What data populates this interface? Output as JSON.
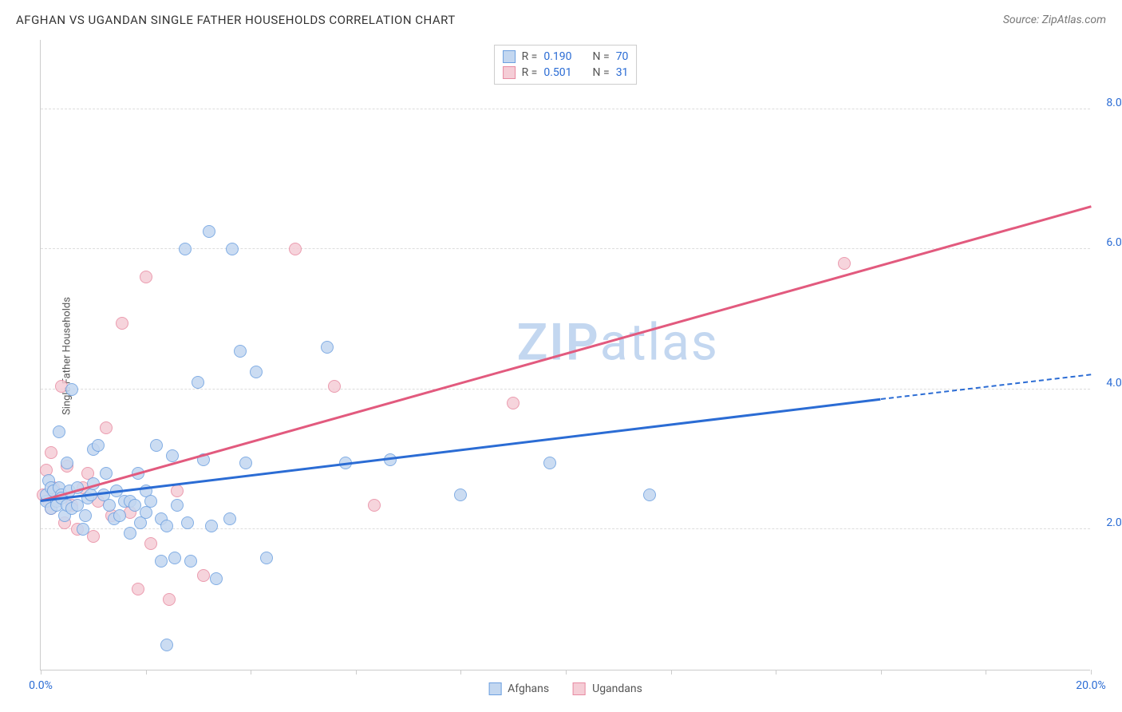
{
  "header": {
    "title": "AFGHAN VS UGANDAN SINGLE FATHER HOUSEHOLDS CORRELATION CHART",
    "source_prefix": "Source: ",
    "source_name": "ZipAtlas.com"
  },
  "ylabel": "Single Father Households",
  "watermark": {
    "bold": "ZIP",
    "light": "atlas",
    "color": "#c3d7f0"
  },
  "chart": {
    "type": "scatter",
    "background_color": "#ffffff",
    "grid_color": "#dddddd",
    "axis_color": "#cccccc",
    "xlim": [
      0,
      20
    ],
    "ylim": [
      0,
      9
    ],
    "x_ticks": [
      0,
      2,
      4,
      6,
      8,
      10,
      12,
      14,
      16,
      18,
      20
    ],
    "x_tick_labels": {
      "0": "0.0%",
      "20": "20.0%"
    },
    "x_tick_label_colors": {
      "0": "#2b6cd4",
      "20": "#2b6cd4"
    },
    "y_gridlines": [
      2,
      4,
      6,
      8
    ],
    "y_tick_labels": {
      "2": "2.0%",
      "4": "4.0%",
      "6": "6.0%",
      "8": "8.0%"
    },
    "y_tick_color": "#2b6cd4",
    "marker_radius": 8,
    "marker_border_width": 1.5,
    "trend_line_width": 2.5
  },
  "series": {
    "afghans": {
      "label": "Afghans",
      "fill": "#c3d7f0",
      "stroke": "#6da0e0",
      "line_color": "#2b6cd4",
      "R_label": "R = ",
      "R_value": "0.190",
      "N_label": "N = ",
      "N_value": "70",
      "trend": {
        "x1": 0,
        "y1": 2.4,
        "x2": 16,
        "y2": 3.85,
        "dash_to_x": 20,
        "dash_to_y": 4.2
      },
      "points": [
        [
          0.1,
          2.4
        ],
        [
          0.1,
          2.5
        ],
        [
          0.15,
          2.7
        ],
        [
          0.2,
          2.3
        ],
        [
          0.2,
          2.6
        ],
        [
          0.25,
          2.55
        ],
        [
          0.3,
          2.4
        ],
        [
          0.3,
          2.35
        ],
        [
          0.35,
          2.6
        ],
        [
          0.35,
          3.4
        ],
        [
          0.4,
          2.5
        ],
        [
          0.4,
          2.45
        ],
        [
          0.45,
          2.2
        ],
        [
          0.5,
          2.95
        ],
        [
          0.5,
          2.35
        ],
        [
          0.55,
          2.55
        ],
        [
          0.6,
          4.0
        ],
        [
          0.6,
          2.3
        ],
        [
          0.7,
          2.6
        ],
        [
          0.7,
          2.35
        ],
        [
          0.8,
          2.0
        ],
        [
          0.85,
          2.2
        ],
        [
          0.9,
          2.45
        ],
        [
          0.95,
          2.5
        ],
        [
          1.0,
          3.15
        ],
        [
          1.0,
          2.65
        ],
        [
          1.1,
          3.2
        ],
        [
          1.2,
          2.5
        ],
        [
          1.25,
          2.8
        ],
        [
          1.3,
          2.35
        ],
        [
          1.4,
          2.15
        ],
        [
          1.45,
          2.55
        ],
        [
          1.5,
          2.2
        ],
        [
          1.6,
          2.4
        ],
        [
          1.7,
          1.95
        ],
        [
          1.7,
          2.4
        ],
        [
          1.8,
          2.35
        ],
        [
          1.85,
          2.8
        ],
        [
          1.9,
          2.1
        ],
        [
          2.0,
          2.55
        ],
        [
          2.0,
          2.25
        ],
        [
          2.1,
          2.4
        ],
        [
          2.2,
          3.2
        ],
        [
          2.3,
          1.55
        ],
        [
          2.3,
          2.15
        ],
        [
          2.4,
          2.05
        ],
        [
          2.5,
          3.05
        ],
        [
          2.55,
          1.6
        ],
        [
          2.6,
          2.35
        ],
        [
          2.75,
          6.0
        ],
        [
          2.8,
          2.1
        ],
        [
          2.85,
          1.55
        ],
        [
          3.0,
          4.1
        ],
        [
          3.1,
          3.0
        ],
        [
          3.2,
          6.25
        ],
        [
          3.25,
          2.05
        ],
        [
          3.35,
          1.3
        ],
        [
          3.6,
          2.15
        ],
        [
          3.65,
          6.0
        ],
        [
          3.8,
          4.55
        ],
        [
          3.9,
          2.95
        ],
        [
          4.1,
          4.25
        ],
        [
          4.3,
          1.6
        ],
        [
          5.45,
          4.6
        ],
        [
          5.8,
          2.95
        ],
        [
          6.65,
          3.0
        ],
        [
          8.0,
          2.5
        ],
        [
          9.7,
          2.95
        ],
        [
          11.6,
          2.5
        ],
        [
          2.4,
          0.35
        ]
      ]
    },
    "ugandans": {
      "label": "Ugandans",
      "fill": "#f5cdd6",
      "stroke": "#e88ba2",
      "line_color": "#e25a7e",
      "R_label": "R = ",
      "R_value": "0.501",
      "N_label": "N = ",
      "N_value": "31",
      "trend": {
        "x1": 0,
        "y1": 2.4,
        "x2": 20,
        "y2": 6.6
      },
      "points": [
        [
          0.05,
          2.5
        ],
        [
          0.1,
          2.85
        ],
        [
          0.15,
          2.4
        ],
        [
          0.2,
          3.1
        ],
        [
          0.2,
          2.3
        ],
        [
          0.25,
          2.6
        ],
        [
          0.3,
          2.45
        ],
        [
          0.4,
          4.05
        ],
        [
          0.45,
          2.1
        ],
        [
          0.5,
          2.9
        ],
        [
          0.6,
          2.35
        ],
        [
          0.7,
          2.0
        ],
        [
          0.8,
          2.6
        ],
        [
          0.9,
          2.8
        ],
        [
          1.0,
          1.9
        ],
        [
          1.1,
          2.4
        ],
        [
          1.25,
          3.45
        ],
        [
          1.35,
          2.2
        ],
        [
          1.55,
          4.95
        ],
        [
          1.7,
          2.25
        ],
        [
          1.85,
          1.15
        ],
        [
          2.0,
          5.6
        ],
        [
          2.1,
          1.8
        ],
        [
          2.45,
          1.0
        ],
        [
          2.6,
          2.55
        ],
        [
          3.1,
          1.35
        ],
        [
          4.85,
          6.0
        ],
        [
          5.6,
          4.05
        ],
        [
          6.35,
          2.35
        ],
        [
          9.0,
          3.8
        ],
        [
          15.3,
          5.8
        ]
      ]
    }
  },
  "legend_top_stat_color": "#2b6cd4",
  "legend_top_text_color": "#555555"
}
